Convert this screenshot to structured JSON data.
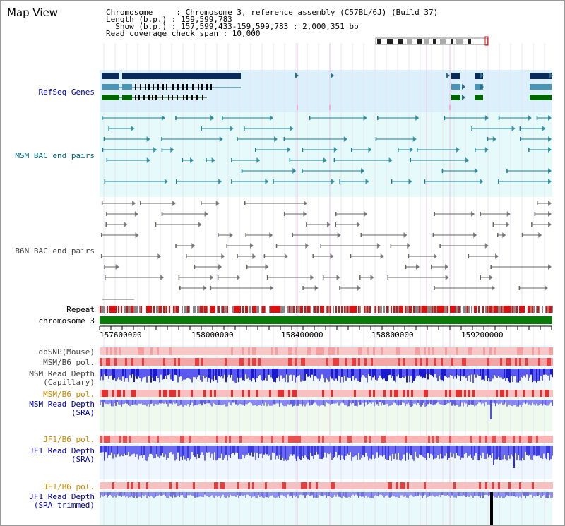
{
  "header": {
    "title": "Map View",
    "info_lines": [
      "Chromosome     : Chromosome 3, reference assembly (C57BL/6J) (Build 37)",
      "Length (b.p.) : 159,599,783",
      "  Show (b.p.) : 157,599,433-159,599,783 : 2,000,351 bp",
      "Read coverage check span : 10,000"
    ]
  },
  "tracks": {
    "refseq": "RefSeq Genes",
    "msm_bac": "MSM BAC end pairs",
    "b6n_bac": "B6N BAC end pairs",
    "repeat": "Repeat",
    "chromosome": "chromosome 3",
    "dbsnp": "dbSNP(Mouse)",
    "msm_pol": "MSM/B6 pol.",
    "msm_depth_cap": {
      "line1": "MSM Read Depth",
      "line2": "(Capillary)"
    },
    "msm_pol_sra": "MSM/B6 pol.",
    "msm_depth_sra": {
      "line1": "MSM Read Depth",
      "line2": "(SRA)"
    },
    "jf1_pol": "JF1/B6 pol.",
    "jf1_depth_sra": {
      "line1": "JF1 Read Depth",
      "line2": "(SRA)"
    },
    "jf1_pol2": "JF1/B6 pol.",
    "jf1_depth_trim": {
      "line1": "JF1 Read Depth",
      "line2": "(SRA trimmed)"
    }
  },
  "axis": {
    "ticks": [
      "157600000",
      "158000000",
      "158400000",
      "158800000",
      "159200000"
    ]
  },
  "colors": {
    "refseq_bg": "#dbf0fa",
    "msm_bg": "#e6fafa",
    "b6n_bg": "#ffffff",
    "chromosome": "#0a7a0a",
    "dark_blue": "#0a2a5a",
    "teal": "#1a7f95",
    "green": "#006600",
    "label_blue": "#0000aa",
    "label_teal": "#006677",
    "label_orange": "#cc8800",
    "label_gray": "#444444"
  }
}
